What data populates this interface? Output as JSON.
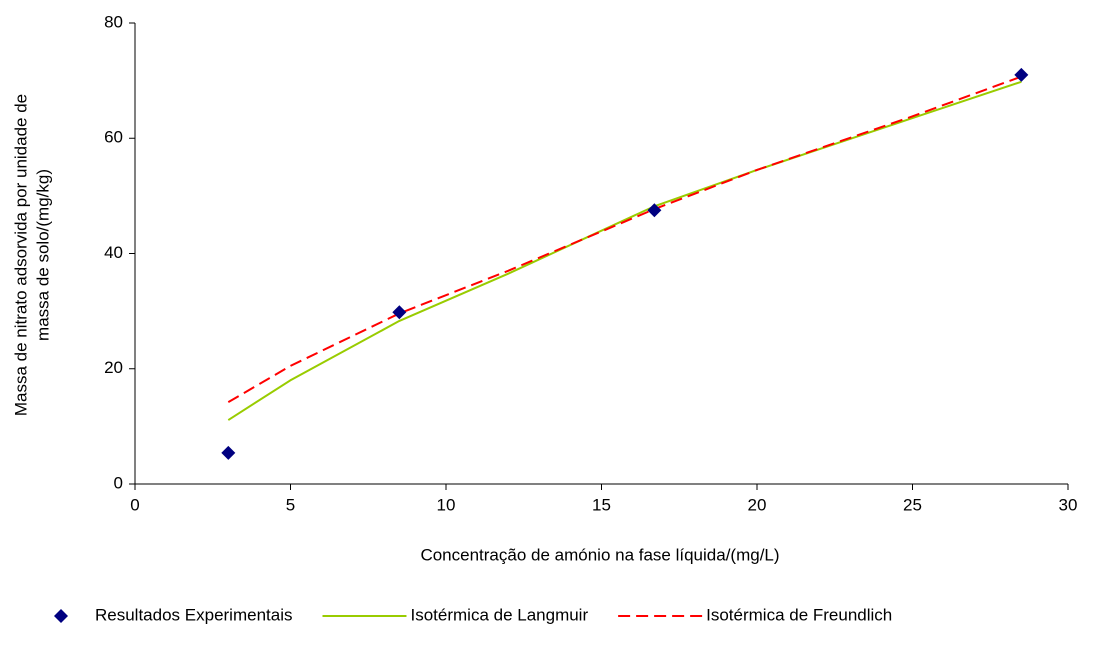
{
  "chart_data": {
    "type": "scatter",
    "xlabel": "Concentração de amónio na fase líquida/(mg/L)",
    "ylabel": [
      "Massa de nitrato adsorvida por unidade de",
      "massa de solo/(mg/kg)"
    ],
    "xlim": [
      0,
      30
    ],
    "xticks": [
      0,
      5,
      10,
      15,
      20,
      25,
      30
    ],
    "ylim": [
      0,
      80
    ],
    "yticks": [
      0,
      20,
      40,
      60,
      80
    ],
    "grid": false,
    "legend": "bottom",
    "series": [
      {
        "name": "Resultados Experimentais",
        "type": "scatter",
        "color": "#000080",
        "x": [
          3.0,
          8.5,
          16.7,
          28.5
        ],
        "values": [
          5.4,
          29.8,
          47.5,
          71.0
        ]
      },
      {
        "name": "Isotérmica de Langmuir",
        "type": "line",
        "color": "#99cc00",
        "dash": false,
        "x": [
          3,
          5,
          8.5,
          12,
          16.7,
          20,
          25,
          28.5
        ],
        "values": [
          11.1,
          18,
          28.3,
          36.5,
          48.2,
          54.5,
          63.5,
          69.8
        ]
      },
      {
        "name": "Isotérmica de Freundlich",
        "type": "line",
        "color": "#ff0000",
        "dash": true,
        "x": [
          3,
          5,
          8.5,
          12,
          16.7,
          20,
          25,
          28.5
        ],
        "values": [
          14.2,
          20.5,
          29.6,
          37,
          47.7,
          54.5,
          63.8,
          70.7
        ]
      }
    ]
  }
}
